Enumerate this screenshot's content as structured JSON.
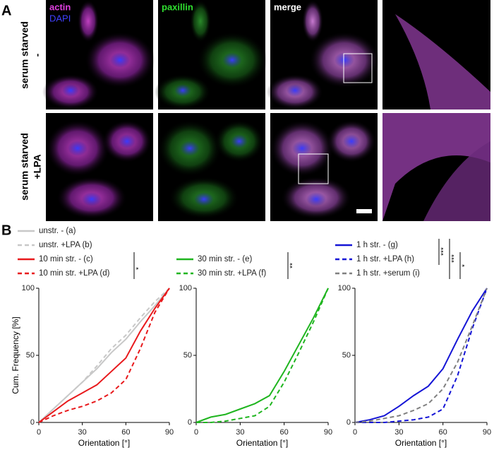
{
  "panel_a": {
    "label": "A",
    "channel_labels": [
      "actin",
      "DAPI",
      "paxillin",
      "merge"
    ],
    "rows": [
      [
        "serum starved",
        "-"
      ],
      [
        "serum starved",
        "+LPA"
      ]
    ]
  },
  "panel_b": {
    "label": "B"
  },
  "chart_data": [
    {
      "type": "line",
      "x": [
        0,
        10,
        20,
        30,
        40,
        50,
        60,
        70,
        80,
        90
      ],
      "series": [
        {
          "name": "unstr. - (a)",
          "color": "#c8c8c8",
          "line_style": "solid",
          "values": [
            0,
            10,
            20,
            30,
            40,
            52,
            62,
            75,
            87,
            100
          ]
        },
        {
          "name": "unstr. +LPA (b)",
          "color": "#c8c8c8",
          "line_style": "dashed",
          "values": [
            0,
            10,
            20,
            30,
            42,
            55,
            65,
            78,
            90,
            100
          ]
        },
        {
          "name": "10 min str. - (c)",
          "color": "#e8191c",
          "line_style": "solid",
          "values": [
            0,
            8,
            16,
            22,
            28,
            38,
            48,
            68,
            85,
            100
          ]
        },
        {
          "name": "10 min str. +LPA (d)",
          "color": "#e8191c",
          "line_style": "dashed",
          "values": [
            0,
            5,
            9,
            12,
            16,
            22,
            32,
            55,
            82,
            100
          ]
        }
      ],
      "xlim": [
        0,
        90
      ],
      "xticks": [
        0,
        30,
        60,
        90
      ],
      "ylim": [
        0,
        100
      ],
      "yticks": [
        0,
        50,
        100
      ],
      "xlabel": "Orientation [°]",
      "ylabel": "Cum. Frequency [%]",
      "annotations": [
        "*"
      ]
    },
    {
      "type": "line",
      "x": [
        0,
        10,
        20,
        30,
        40,
        50,
        60,
        70,
        80,
        90
      ],
      "series": [
        {
          "name": "30 min str. - (e)",
          "color": "#1fb51f",
          "line_style": "solid",
          "values": [
            0,
            4,
            6,
            10,
            14,
            20,
            38,
            58,
            78,
            100
          ]
        },
        {
          "name": "30 min str. +LPA (f)",
          "color": "#1fb51f",
          "line_style": "dashed",
          "values": [
            0,
            0,
            1,
            3,
            5,
            12,
            30,
            52,
            75,
            100
          ]
        }
      ],
      "xlim": [
        0,
        90
      ],
      "xticks": [
        0,
        30,
        60,
        90
      ],
      "ylim": [
        0,
        100
      ],
      "yticks": [
        0,
        50,
        100
      ],
      "xlabel": "Orientation [°]",
      "annotations": [
        "**"
      ]
    },
    {
      "type": "line",
      "x": [
        0,
        10,
        20,
        30,
        40,
        50,
        60,
        70,
        80,
        90
      ],
      "series": [
        {
          "name": "1 h str. - (g)",
          "color": "#1515d6",
          "line_style": "solid",
          "values": [
            0,
            2,
            5,
            12,
            20,
            27,
            40,
            62,
            83,
            100
          ]
        },
        {
          "name": "1 h str. +LPA (h)",
          "color": "#1515d6",
          "line_style": "dashed",
          "values": [
            0,
            0,
            0,
            1,
            2,
            4,
            10,
            35,
            70,
            100
          ]
        },
        {
          "name": "1 h str. +serum (i)",
          "color": "#808080",
          "line_style": "dashed",
          "values": [
            0,
            1,
            3,
            5,
            9,
            14,
            25,
            45,
            72,
            100
          ]
        }
      ],
      "xlim": [
        0,
        90
      ],
      "xticks": [
        0,
        30,
        60,
        90
      ],
      "ylim": [
        0,
        100
      ],
      "yticks": [
        0,
        50,
        100
      ],
      "xlabel": "Orientation [°]",
      "annotations": [
        "***",
        "***",
        "*"
      ]
    }
  ]
}
